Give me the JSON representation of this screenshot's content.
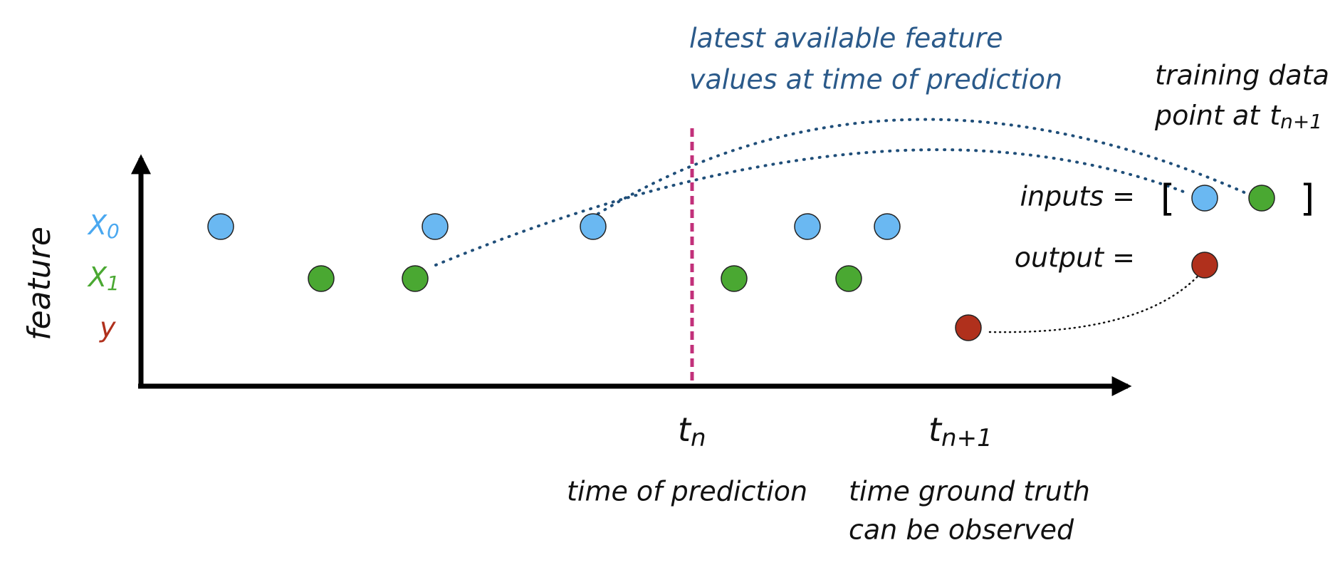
{
  "callout": {
    "lines": [
      "latest available feature",
      "values at time of prediction"
    ]
  },
  "training_note": {
    "line1": "training data",
    "line2": "point at",
    "time": {
      "base": "t",
      "sub": "n+1"
    }
  },
  "axis": {
    "label": "feature",
    "rows": [
      {
        "base": "X",
        "sub": "0"
      },
      {
        "base": "X",
        "sub": "1"
      },
      {
        "base": "y"
      }
    ]
  },
  "ticks": [
    {
      "base": "t",
      "sub": "n"
    },
    {
      "base": "t",
      "sub": "n+1"
    }
  ],
  "tick_notes": [
    {
      "lines": [
        "time of prediction"
      ]
    },
    {
      "lines": [
        "time ground truth",
        "can be observed"
      ]
    }
  ],
  "inputs_label": "inputs =",
  "output_label": "output =",
  "brackets": [
    "[",
    "]"
  ]
}
